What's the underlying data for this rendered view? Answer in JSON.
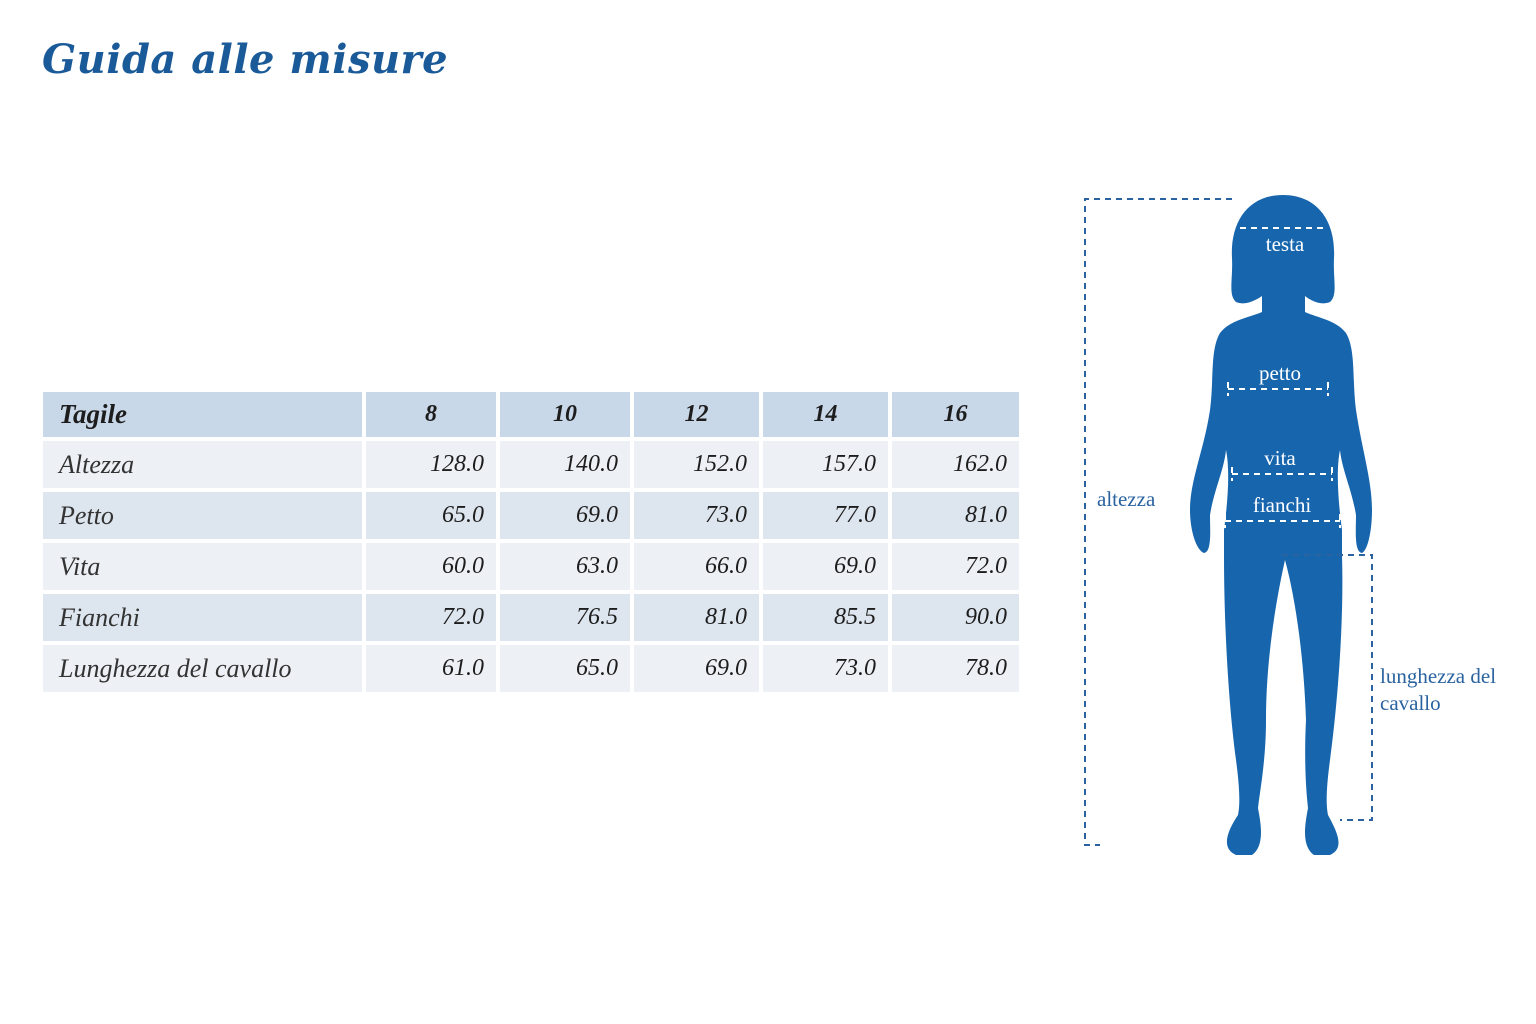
{
  "header": {
    "title": "Guida alle misure"
  },
  "table": {
    "columns": [
      "Tagile",
      "8",
      "10",
      "12",
      "14",
      "16"
    ],
    "rows": [
      [
        "Altezza",
        "128.0",
        "140.0",
        "152.0",
        "157.0",
        "162.0"
      ],
      [
        "Petto",
        "65.0",
        "69.0",
        "73.0",
        "77.0",
        "81.0"
      ],
      [
        "Vita",
        "60.0",
        "63.0",
        "66.0",
        "69.0",
        "72.0"
      ],
      [
        "Fianchi",
        "72.0",
        "76.5",
        "81.0",
        "85.5",
        "90.0"
      ],
      [
        "Lunghezza del cavallo",
        "61.0",
        "65.0",
        "69.0",
        "73.0",
        "78.0"
      ]
    ]
  },
  "figure": {
    "labels": {
      "head": "testa",
      "chest": "petto",
      "waist": "vita",
      "hips": "fianchi",
      "height": "altezza",
      "inseam": "lunghezza del cavallo"
    }
  }
}
